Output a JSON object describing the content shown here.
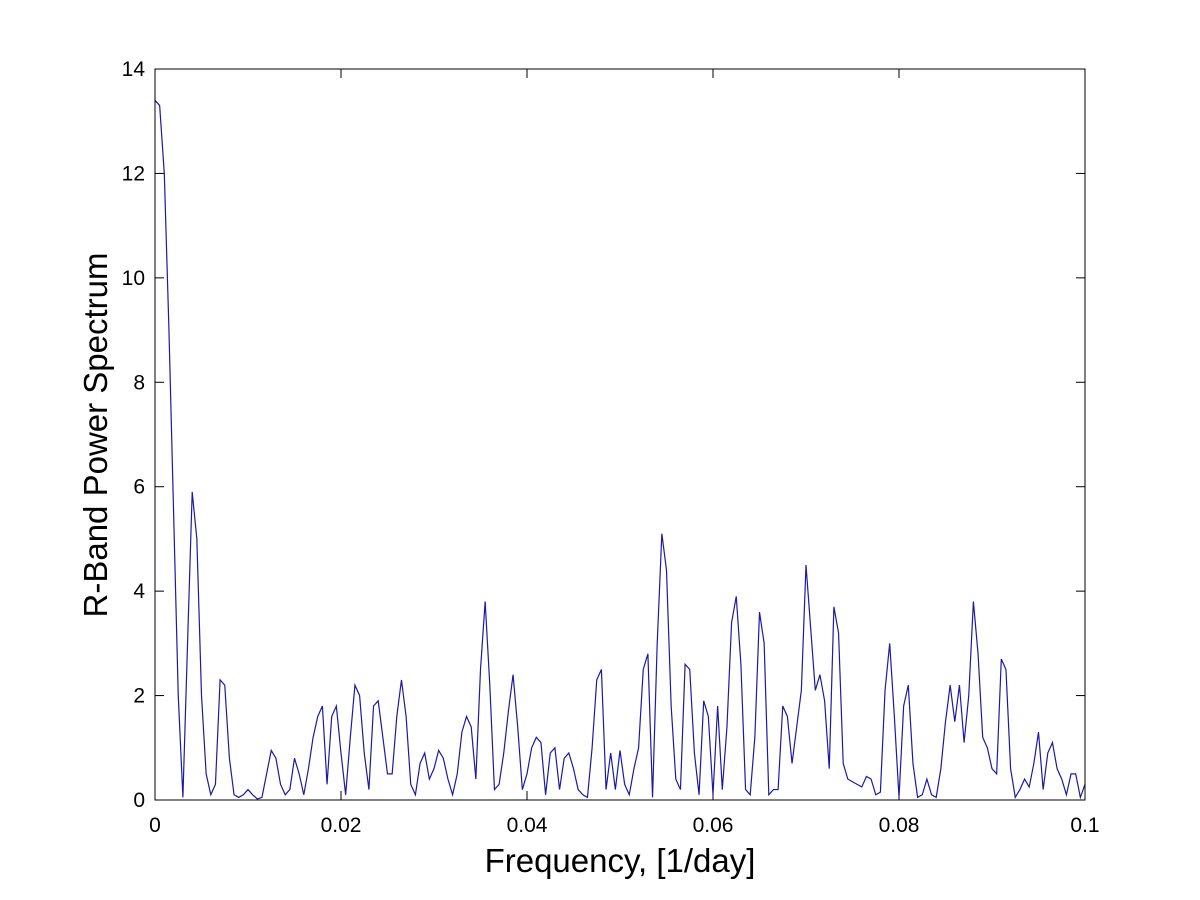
{
  "chart_data": {
    "type": "line",
    "xlabel": "Frequency, [1/day]",
    "ylabel": "R-Band Power Spectrum",
    "color": "#1a1aa6",
    "xlim": [
      0,
      0.1
    ],
    "ylim": [
      0,
      14
    ],
    "xticks": [
      0,
      0.02,
      0.04,
      0.06,
      0.08,
      0.1
    ],
    "yticks": [
      0,
      2,
      4,
      6,
      8,
      10,
      12,
      14
    ],
    "grid": false,
    "x": [
      0,
      0.0005,
      0.001,
      0.0015,
      0.002,
      0.0025,
      0.003,
      0.0035,
      0.004,
      0.0045,
      0.005,
      0.0055,
      0.006,
      0.0065,
      0.007,
      0.0075,
      0.008,
      0.0085,
      0.009,
      0.0095,
      0.01,
      0.0105,
      0.011,
      0.0115,
      0.012,
      0.0125,
      0.013,
      0.0135,
      0.014,
      0.0145,
      0.015,
      0.0155,
      0.016,
      0.0165,
      0.017,
      0.0175,
      0.018,
      0.0185,
      0.019,
      0.0195,
      0.02,
      0.0205,
      0.021,
      0.0215,
      0.022,
      0.0225,
      0.023,
      0.0235,
      0.024,
      0.0245,
      0.025,
      0.0255,
      0.026,
      0.0265,
      0.027,
      0.0275,
      0.028,
      0.0285,
      0.029,
      0.0295,
      0.03,
      0.0305,
      0.031,
      0.0315,
      0.032,
      0.0325,
      0.033,
      0.0335,
      0.034,
      0.0345,
      0.035,
      0.0355,
      0.036,
      0.0365,
      0.037,
      0.0375,
      0.038,
      0.0385,
      0.039,
      0.0395,
      0.04,
      0.0405,
      0.041,
      0.0415,
      0.042,
      0.0425,
      0.043,
      0.0435,
      0.044,
      0.0445,
      0.045,
      0.0455,
      0.046,
      0.0465,
      0.047,
      0.0475,
      0.048,
      0.0485,
      0.049,
      0.0495,
      0.05,
      0.0505,
      0.051,
      0.0515,
      0.052,
      0.0525,
      0.053,
      0.0535,
      0.054,
      0.0545,
      0.055,
      0.0555,
      0.056,
      0.0565,
      0.057,
      0.0575,
      0.058,
      0.0585,
      0.059,
      0.0595,
      0.06,
      0.0605,
      0.061,
      0.0615,
      0.062,
      0.0625,
      0.063,
      0.0635,
      0.064,
      0.0645,
      0.065,
      0.0655,
      0.066,
      0.0665,
      0.067,
      0.0675,
      0.068,
      0.0685,
      0.069,
      0.0695,
      0.07,
      0.0705,
      0.071,
      0.0715,
      0.072,
      0.0725,
      0.073,
      0.0735,
      0.074,
      0.0745,
      0.075,
      0.0755,
      0.076,
      0.0765,
      0.077,
      0.0775,
      0.078,
      0.0785,
      0.079,
      0.0795,
      0.08,
      0.0805,
      0.081,
      0.0815,
      0.082,
      0.0825,
      0.083,
      0.0835,
      0.084,
      0.0845,
      0.085,
      0.0855,
      0.086,
      0.0865,
      0.087,
      0.0875,
      0.088,
      0.0885,
      0.089,
      0.0895,
      0.09,
      0.0905,
      0.091,
      0.0915,
      0.092,
      0.0925,
      0.093,
      0.0935,
      0.094,
      0.0945,
      0.095,
      0.0955,
      0.096,
      0.0965,
      0.097,
      0.0975,
      0.098,
      0.0985,
      0.099,
      0.0995,
      0.1
    ],
    "values": [
      13.4,
      13.3,
      12,
      9,
      5.5,
      2,
      0.05,
      3,
      5.9,
      5,
      2,
      0.5,
      0.1,
      0.3,
      2.3,
      2.2,
      0.8,
      0.1,
      0.05,
      0.1,
      0.2,
      0.1,
      0.02,
      0.05,
      0.5,
      0.95,
      0.8,
      0.3,
      0.1,
      0.2,
      0.8,
      0.5,
      0.1,
      0.6,
      1.2,
      1.6,
      1.8,
      0.3,
      1.6,
      1.8,
      0.9,
      0.1,
      1.2,
      2.2,
      2,
      0.9,
      0.2,
      1.8,
      1.9,
      1.2,
      0.5,
      0.5,
      1.6,
      2.3,
      1.6,
      0.3,
      0.1,
      0.7,
      0.9,
      0.4,
      0.6,
      0.95,
      0.8,
      0.4,
      0.1,
      0.5,
      1.3,
      1.6,
      1.4,
      0.4,
      2.5,
      3.8,
      2.2,
      0.2,
      0.3,
      0.9,
      1.7,
      2.4,
      1.4,
      0.2,
      0.5,
      1,
      1.2,
      1.1,
      0.1,
      0.9,
      1,
      0.2,
      0.8,
      0.9,
      0.6,
      0.2,
      0.1,
      0.05,
      1,
      2.3,
      2.5,
      0.2,
      0.9,
      0.2,
      0.95,
      0.3,
      0.1,
      0.6,
      1,
      2.5,
      2.8,
      0.05,
      3,
      5.1,
      4.4,
      1.8,
      0.4,
      0.2,
      2.6,
      2.5,
      0.9,
      0.1,
      1.9,
      1.6,
      0.1,
      1.8,
      0.2,
      1.4,
      3.4,
      3.9,
      2.6,
      0.2,
      0.1,
      1.2,
      3.6,
      3,
      0.1,
      0.2,
      0.2,
      1.8,
      1.6,
      0.7,
      1.4,
      2.1,
      4.5,
      3.3,
      2.1,
      2.4,
      1.9,
      0.6,
      3.7,
      3.2,
      0.7,
      0.4,
      0.35,
      0.3,
      0.25,
      0.45,
      0.4,
      0.1,
      0.15,
      2.1,
      3,
      1.6,
      0.05,
      1.8,
      2.2,
      0.7,
      0.05,
      0.1,
      0.4,
      0.1,
      0.05,
      0.6,
      1.5,
      2.2,
      1.5,
      2.2,
      1.1,
      2,
      3.8,
      2.8,
      1.2,
      1,
      0.6,
      0.5,
      2.7,
      2.5,
      0.6,
      0.05,
      0.2,
      0.4,
      0.25,
      0.7,
      1.3,
      0.2,
      0.9,
      1.1,
      0.6,
      0.4,
      0.1,
      0.5,
      0.5,
      0.05,
      0.3
    ]
  }
}
